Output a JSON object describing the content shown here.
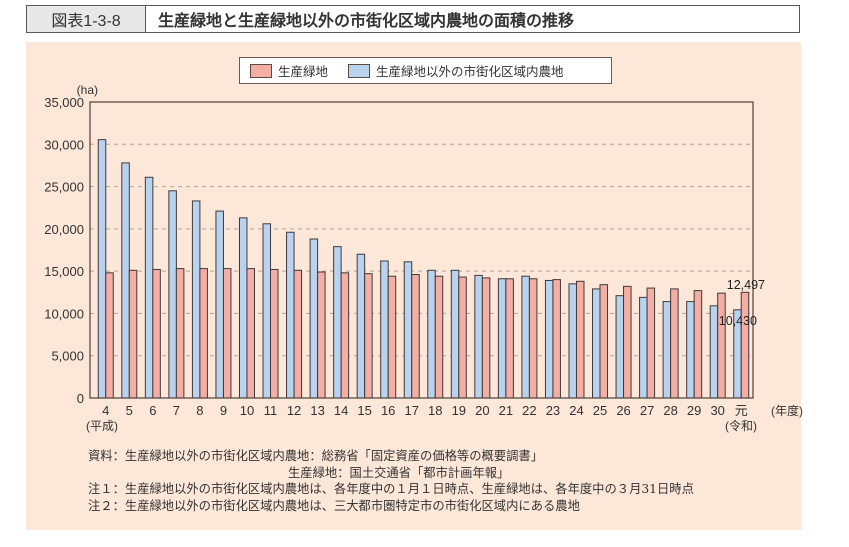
{
  "header": {
    "figure_label": "図表1-3-8",
    "title": "生産緑地と生産緑地以外の市街化区域内農地の面積の推移"
  },
  "legend": {
    "items": [
      {
        "label": "生産緑地",
        "color": "#f4aea3"
      },
      {
        "label": "生産緑地以外の市街化区域内農地",
        "color": "#b9d3ee"
      }
    ]
  },
  "axis": {
    "y_unit": "(ha)",
    "x_unit": "(年度)",
    "era_start": "(平成)",
    "era_end": "(令和)"
  },
  "annotations": {
    "last_pink": "12,497",
    "last_blue": "10,430"
  },
  "notes": {
    "source1": "資料：生産緑地以外の市街化区域内農地：総務省「固定資産の価格等の概要調書」",
    "source2": "生産緑地：国土交通省「都市計画年報」",
    "note1": "注１：生産緑地以外の市街化区域内農地は、各年度中の１月１日時点、生産緑地は、各年度中の３月31日時点",
    "note2": "注２：生産緑地以外の市街化区域内農地は、三大都市圏特定市の市街化区域内にある農地"
  },
  "chart_data": {
    "type": "bar",
    "title": "生産緑地と生産緑地以外の市街化区域内農地の面積の推移",
    "xlabel": "(年度)",
    "ylabel": "(ha)",
    "ylim": [
      0,
      35000
    ],
    "yticks": [
      0,
      5000,
      10000,
      15000,
      20000,
      25000,
      30000,
      35000
    ],
    "ytick_labels": [
      "0",
      "5,000",
      "10,000",
      "15,000",
      "20,000",
      "25,000",
      "30,000",
      "35,000"
    ],
    "grid": "horizontal dashed",
    "legend_position": "top center",
    "categories": [
      "4",
      "5",
      "6",
      "7",
      "8",
      "9",
      "10",
      "11",
      "12",
      "13",
      "14",
      "15",
      "16",
      "17",
      "18",
      "19",
      "20",
      "21",
      "22",
      "23",
      "24",
      "25",
      "26",
      "27",
      "28",
      "29",
      "30",
      "元"
    ],
    "series": [
      {
        "name": "生産緑地以外の市街化区域内農地",
        "color": "#b9d3ee",
        "values": [
          30550,
          27800,
          26100,
          24500,
          23300,
          22100,
          21300,
          20600,
          19600,
          18800,
          17900,
          17000,
          16200,
          16100,
          15100,
          15100,
          14500,
          14100,
          14400,
          13900,
          13500,
          12900,
          12100,
          11900,
          11400,
          11400,
          10900,
          10430
        ]
      },
      {
        "name": "生産緑地",
        "color": "#f4aea3",
        "values": [
          14800,
          15100,
          15200,
          15300,
          15300,
          15300,
          15300,
          15200,
          15100,
          14900,
          14800,
          14700,
          14400,
          14600,
          14400,
          14300,
          14200,
          14100,
          14100,
          14000,
          13800,
          13400,
          13200,
          13000,
          12900,
          12700,
          12400,
          12497
        ]
      }
    ],
    "annotations": [
      {
        "category": "元",
        "series": "生産緑地",
        "text": "12,497"
      },
      {
        "category": "元",
        "series": "生産緑地以外の市街化区域内農地",
        "text": "10,430"
      }
    ]
  }
}
